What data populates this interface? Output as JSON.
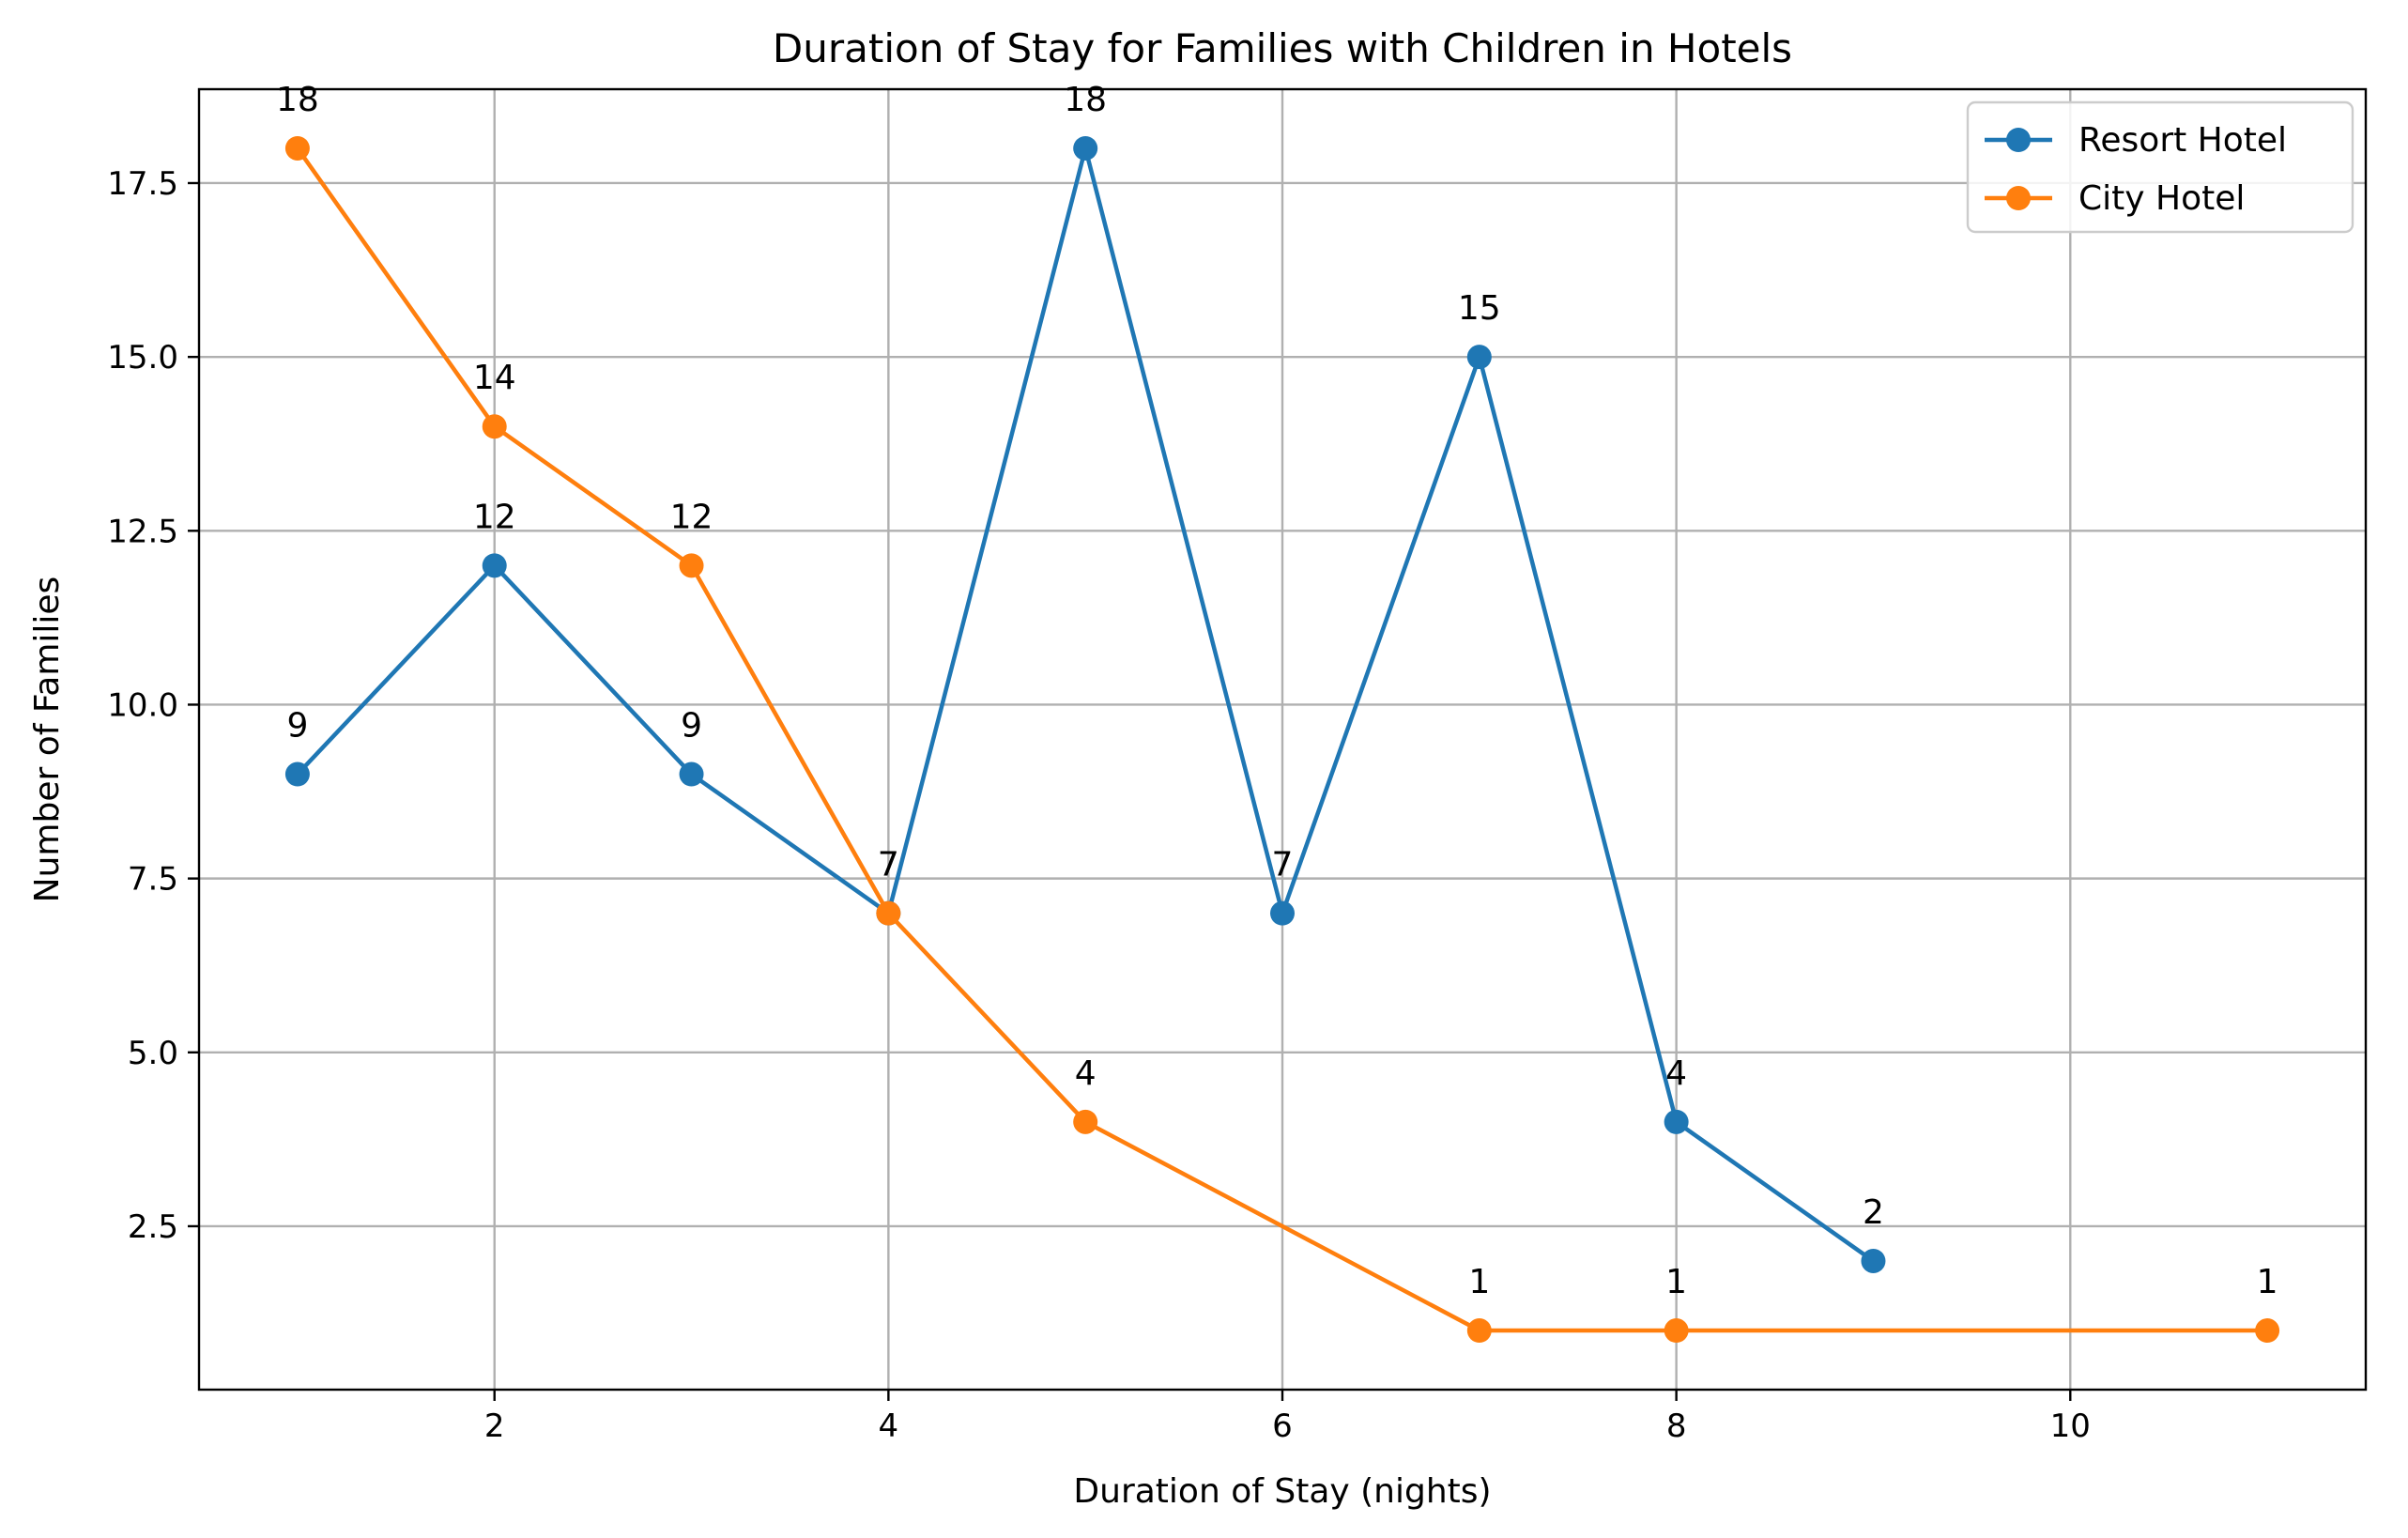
{
  "chart_data": {
    "type": "line",
    "title": "Duration of Stay for Families with Children in Hotels",
    "xlabel": "Duration of Stay (nights)",
    "ylabel": "Number of Families",
    "xlim": [
      0.5,
      11.5
    ],
    "ylim": [
      0.15,
      18.85
    ],
    "xticks": [
      2,
      4,
      6,
      8,
      10
    ],
    "yticks": [
      2.5,
      5.0,
      7.5,
      10.0,
      12.5,
      15.0,
      17.5
    ],
    "xtick_labels": [
      "2",
      "4",
      "6",
      "8",
      "10"
    ],
    "ytick_labels": [
      "2.5",
      "5.0",
      "7.5",
      "10.0",
      "12.5",
      "15.0",
      "17.5"
    ],
    "grid": true,
    "legend_position": "top-right",
    "series": [
      {
        "name": "Resort Hotel",
        "color": "#1f77b4",
        "x": [
          1,
          2,
          3,
          4,
          5,
          6,
          7,
          8,
          9
        ],
        "y": [
          9,
          12,
          9,
          7,
          18,
          7,
          15,
          4,
          2
        ],
        "labels": [
          "9",
          "12",
          "9",
          "7",
          "18",
          "7",
          "15",
          "4",
          "2"
        ]
      },
      {
        "name": "City Hotel",
        "color": "#ff7f0e",
        "x": [
          1,
          2,
          3,
          4,
          5,
          7,
          8,
          11
        ],
        "y": [
          18,
          14,
          12,
          7,
          4,
          1,
          1,
          1
        ],
        "labels": [
          "18",
          "14",
          "12",
          "7",
          "4",
          "1",
          "1",
          "1"
        ]
      }
    ]
  }
}
